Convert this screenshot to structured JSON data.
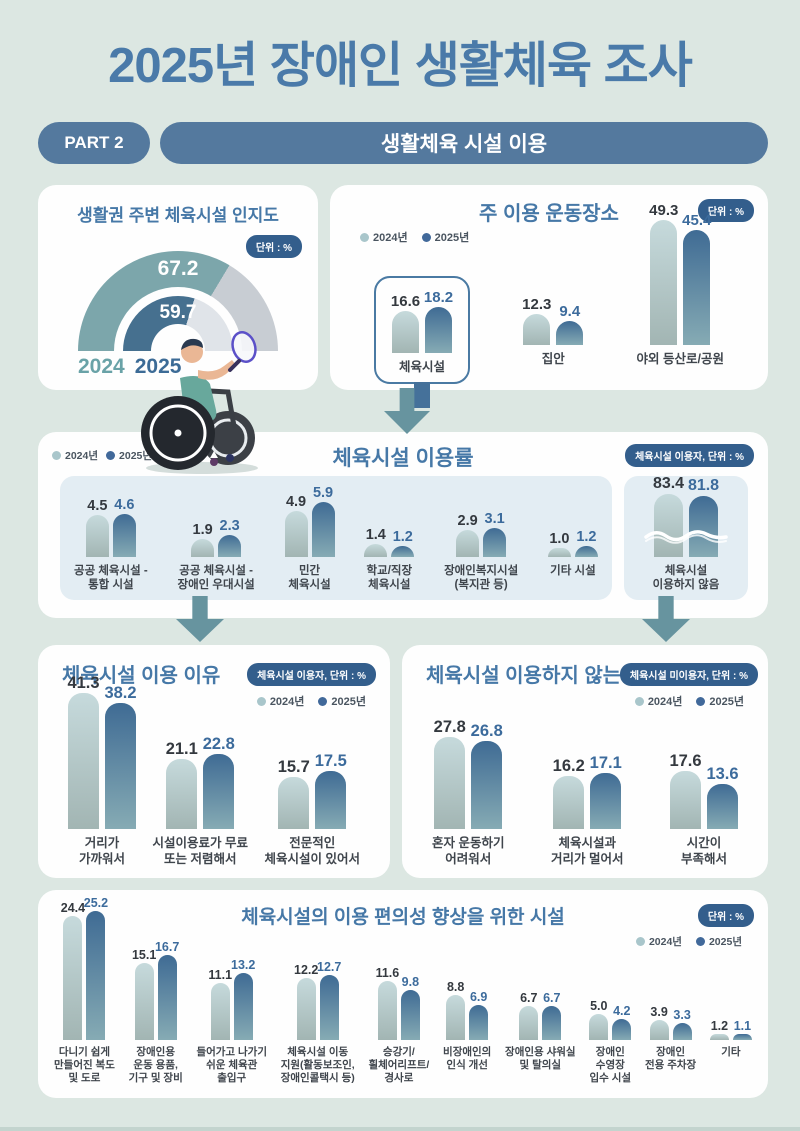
{
  "page": {
    "title": "2025년 장애인 생활체육 조사",
    "part_badge": "PART 2",
    "part_title": "생활체육 시설 이용",
    "bg_color": "#dce7e2",
    "accent_color": "#4a7aa9"
  },
  "legend": {
    "y2024": "2024년",
    "y2025": "2025년"
  },
  "colors": {
    "header_bg": "#54799e",
    "unit_badge_bg": "#335e8c",
    "bar_2024_top": "#c6dadc",
    "bar_2024_bottom": "#a2b5b3",
    "bar_2025_top": "#3f6b94",
    "bar_2025_bottom": "#86abb4",
    "value_2024": "#34393f",
    "value_2025": "#3c6b9c",
    "arrow": "#67949f",
    "gauge_2024": "#7ca6ab",
    "gauge_2024_rest": "#c8cdd3",
    "gauge_2025": "#46708f",
    "gauge_2025_rest": "#e0e4e9",
    "panel_bg": "#e3edf3"
  },
  "chart_data": [
    {
      "id": "awareness_gauge",
      "type": "gauge",
      "title": "생활권 주변 체육시설 인지도",
      "badge": "단위 : %",
      "max": 100,
      "series": [
        {
          "name": "2024",
          "value": 67.2
        },
        {
          "name": "2025",
          "value": 59.7
        }
      ]
    },
    {
      "id": "main_places",
      "type": "bar",
      "title": "주 이용 운동장소",
      "badge": "단위 : %",
      "categories": [
        [
          "체육시설"
        ],
        [
          "집안"
        ],
        [
          "야외 등산로/공원"
        ]
      ],
      "series": [
        {
          "name": "2024년",
          "values": [
            16.6,
            12.3,
            49.3
          ]
        },
        {
          "name": "2025년",
          "values": [
            18.2,
            9.4,
            45.4
          ]
        }
      ],
      "highlight_category": "체육시설"
    },
    {
      "id": "usage_rate",
      "type": "bar",
      "title": "체육시설 이용률",
      "badge": "체육시설 이용자, 단위 : %",
      "categories": [
        [
          "공공 체육시설 -",
          "통합 시설"
        ],
        [
          "공공 체육시설 -",
          "장애인 우대시설"
        ],
        [
          "민간",
          "체육시설"
        ],
        [
          "학교/직장",
          "체육시설"
        ],
        [
          "장애인복지시설",
          "(복지관 등)"
        ],
        [
          "기타 시설"
        ]
      ],
      "series": [
        {
          "name": "2024년",
          "values": [
            4.5,
            1.9,
            4.9,
            1.4,
            2.9,
            1.0
          ]
        },
        {
          "name": "2025년",
          "values": [
            4.6,
            2.3,
            5.9,
            1.2,
            3.1,
            1.2
          ]
        }
      ]
    },
    {
      "id": "not_using",
      "type": "bar",
      "axis_break": true,
      "categories": [
        [
          "체육시설",
          "이용하지 않음"
        ]
      ],
      "series": [
        {
          "name": "2024년",
          "values": [
            83.4
          ]
        },
        {
          "name": "2025년",
          "values": [
            81.8
          ]
        }
      ]
    },
    {
      "id": "use_reasons",
      "type": "bar",
      "title": "체육시설 이용 이유",
      "badge": "체육시설 이용자, 단위 : %",
      "categories": [
        [
          "거리가",
          "가까워서"
        ],
        [
          "시설이용료가 무료",
          "또는 저렴해서"
        ],
        [
          "전문적인",
          "체육시설이 있어서"
        ]
      ],
      "series": [
        {
          "name": "2024년",
          "values": [
            41.3,
            21.1,
            15.7
          ]
        },
        {
          "name": "2025년",
          "values": [
            38.2,
            22.8,
            17.5
          ]
        }
      ]
    },
    {
      "id": "not_use_reasons",
      "type": "bar",
      "title": "체육시설 이용하지 않는 이유",
      "badge": "체육시설 미이용자, 단위 : %",
      "categories": [
        [
          "혼자 운동하기",
          "어려워서"
        ],
        [
          "체육시설과",
          "거리가 멀어서"
        ],
        [
          "시간이",
          "부족해서"
        ]
      ],
      "series": [
        {
          "name": "2024년",
          "values": [
            27.8,
            16.2,
            17.6
          ]
        },
        {
          "name": "2025년",
          "values": [
            26.8,
            17.1,
            13.6
          ]
        }
      ]
    },
    {
      "id": "facilities",
      "type": "bar",
      "title": "체육시설의 이용 편의성 향상을 위한 시설",
      "badge": "단위 : %",
      "categories": [
        [
          "다니기 쉽게",
          "만들어진 복도",
          "및 도로"
        ],
        [
          "장애인용",
          "운동 용품,",
          "기구 및 장비"
        ],
        [
          "들어가고 나가기",
          "쉬운 체육관",
          "출입구"
        ],
        [
          "체육시설 이동",
          "지원(활동보조인,",
          "장애인콜택시 등)"
        ],
        [
          "승강기/",
          "휠체어리프트/",
          "경사로"
        ],
        [
          "비장애인의",
          "인식 개선"
        ],
        [
          "장애인용 샤워실",
          "및 탈의실"
        ],
        [
          "장애인",
          "수영장",
          "입수 시설"
        ],
        [
          "장애인",
          "전용 주차장"
        ],
        [
          "기타"
        ]
      ],
      "series": [
        {
          "name": "2024년",
          "values": [
            24.4,
            15.1,
            11.1,
            12.2,
            11.6,
            8.8,
            6.7,
            5.0,
            3.9,
            1.2
          ]
        },
        {
          "name": "2025년",
          "values": [
            25.2,
            16.7,
            13.2,
            12.7,
            9.8,
            6.9,
            6.7,
            4.2,
            3.3,
            1.1
          ]
        }
      ]
    }
  ]
}
